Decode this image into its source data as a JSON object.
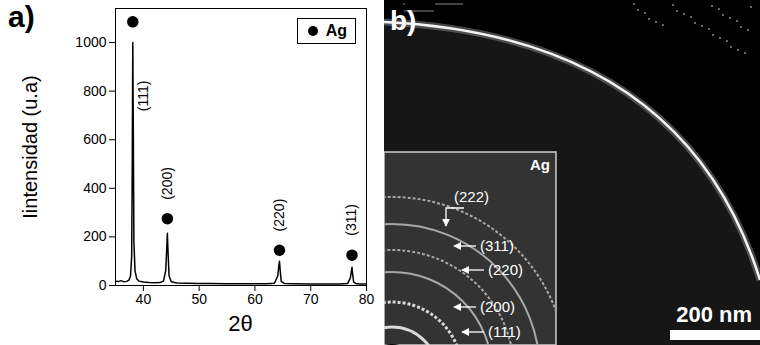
{
  "chart_data": {
    "type": "line",
    "title": "a)",
    "x_label": "2θ",
    "y_label": "Iintensidad (u.a)",
    "x": [
      35,
      35.5,
      36,
      36.5,
      37,
      37.4,
      37.7,
      37.9,
      38.0,
      38.1,
      38.2,
      38.3,
      38.5,
      38.8,
      39.2,
      40,
      41,
      42,
      43,
      43.6,
      44.0,
      44.2,
      44.3,
      44.4,
      44.6,
      45,
      46,
      48,
      50,
      52,
      55,
      58,
      60,
      62,
      63.5,
      64.1,
      64.3,
      64.4,
      64.5,
      64.7,
      65.3,
      67,
      70,
      73,
      75,
      76.6,
      77.1,
      77.3,
      77.4,
      77.5,
      77.7,
      78.2,
      79,
      80
    ],
    "series": [
      {
        "type": "line",
        "color": "#000000",
        "values": [
          18,
          16,
          20,
          15,
          17,
          22,
          40,
          120,
          480,
          1000,
          610,
          180,
          60,
          28,
          18,
          14,
          12,
          11,
          12,
          18,
          60,
          160,
          215,
          150,
          40,
          15,
          10,
          9,
          8,
          8,
          7,
          7,
          7,
          7,
          9,
          40,
          85,
          100,
          70,
          18,
          8,
          7,
          6,
          6,
          6,
          8,
          30,
          60,
          75,
          50,
          14,
          7,
          6,
          6
        ]
      },
      {
        "name": "Ag",
        "type": "scatter",
        "marker": "circle",
        "color": "#000000",
        "x": [
          38.1,
          44.3,
          64.4,
          77.4
        ],
        "values": [
          1085,
          275,
          145,
          125
        ]
      }
    ],
    "annotations": [
      {
        "text": "(111)",
        "x": 40.0,
        "y": 780
      },
      {
        "text": "(200)",
        "x": 44.3,
        "y": 420
      },
      {
        "text": "(220)",
        "x": 64.4,
        "y": 290
      },
      {
        "text": "(311)",
        "x": 77.4,
        "y": 270
      }
    ],
    "xlim": [
      35,
      80
    ],
    "xticks": [
      40,
      50,
      60,
      70,
      80
    ],
    "ylim": [
      0,
      1140
    ],
    "yticks": [
      0,
      200,
      400,
      600,
      800,
      1000
    ],
    "grid": false,
    "legend": "top-right"
  },
  "image_panel": {
    "label": "b)",
    "scale_bar": "200 nm",
    "inset": {
      "label": "Ag",
      "rings": [
        "(222)",
        "(311)",
        "(220)",
        "(200)",
        "(111)"
      ]
    }
  }
}
